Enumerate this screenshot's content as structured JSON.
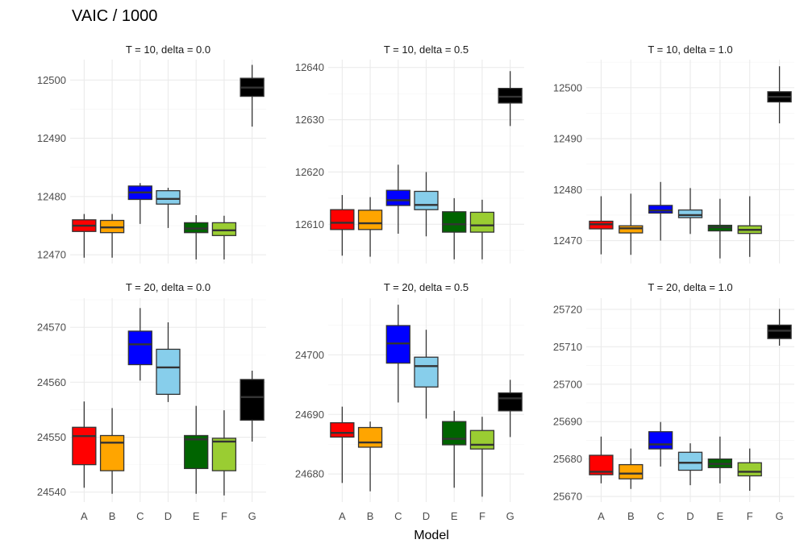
{
  "chart_data": {
    "type": "box",
    "title": "VAIC / 1000",
    "xlabel": "Model",
    "categories": [
      "A",
      "B",
      "C",
      "D",
      "E",
      "F",
      "G"
    ],
    "colors": {
      "A": "#ff0000",
      "B": "#ffa500",
      "C": "#0000ff",
      "D": "#87ceeb",
      "E": "#006400",
      "F": "#9acd32",
      "G": "#000000"
    },
    "box_outline": "#333333",
    "panels": [
      {
        "label": "T = 10, delta = 0.0",
        "ylim": [
          12468.5,
          12503.5
        ],
        "yticks": [
          12470,
          12480,
          12490,
          12500
        ],
        "boxes": [
          {
            "model": "A",
            "min": 12469.5,
            "q1": 12474.0,
            "median": 12475.0,
            "q3": 12476.0,
            "max": 12477.0
          },
          {
            "model": "B",
            "min": 12469.5,
            "q1": 12473.8,
            "median": 12474.7,
            "q3": 12475.9,
            "max": 12477.0
          },
          {
            "model": "C",
            "min": 12475.3,
            "q1": 12479.5,
            "median": 12480.7,
            "q3": 12481.8,
            "max": 12482.3
          },
          {
            "model": "D",
            "min": 12474.6,
            "q1": 12478.7,
            "median": 12479.6,
            "q3": 12481.0,
            "max": 12481.5
          },
          {
            "model": "E",
            "min": 12469.2,
            "q1": 12473.8,
            "median": 12474.5,
            "q3": 12475.5,
            "max": 12476.8
          },
          {
            "model": "F",
            "min": 12469.2,
            "q1": 12473.3,
            "median": 12474.2,
            "q3": 12475.5,
            "max": 12476.7
          },
          {
            "model": "G",
            "min": 12492.0,
            "q1": 12497.2,
            "median": 12498.7,
            "q3": 12500.3,
            "max": 12502.6
          }
        ]
      },
      {
        "label": "T = 10, delta = 0.5",
        "ylim": [
          12602.5,
          12641.5
        ],
        "yticks": [
          12610,
          12620,
          12630,
          12640
        ],
        "boxes": [
          {
            "model": "A",
            "min": 12604.0,
            "q1": 12609.0,
            "median": 12610.3,
            "q3": 12612.8,
            "max": 12615.6
          },
          {
            "model": "B",
            "min": 12603.8,
            "q1": 12609.0,
            "median": 12610.2,
            "q3": 12612.7,
            "max": 12615.2
          },
          {
            "model": "C",
            "min": 12608.2,
            "q1": 12613.6,
            "median": 12614.6,
            "q3": 12616.5,
            "max": 12621.4
          },
          {
            "model": "D",
            "min": 12607.7,
            "q1": 12612.8,
            "median": 12613.7,
            "q3": 12616.3,
            "max": 12620.0
          },
          {
            "model": "E",
            "min": 12603.3,
            "q1": 12608.5,
            "median": 12610.0,
            "q3": 12612.4,
            "max": 12615.0
          },
          {
            "model": "F",
            "min": 12603.3,
            "q1": 12608.5,
            "median": 12609.8,
            "q3": 12612.3,
            "max": 12614.7
          },
          {
            "model": "G",
            "min": 12628.8,
            "q1": 12633.2,
            "median": 12634.4,
            "q3": 12636.0,
            "max": 12639.3
          }
        ]
      },
      {
        "label": "T = 10, delta = 1.0",
        "ylim": [
          12465.5,
          12505.5
        ],
        "yticks": [
          12470,
          12480,
          12490,
          12500
        ],
        "boxes": [
          {
            "model": "A",
            "min": 12467.3,
            "q1": 12472.3,
            "median": 12473.2,
            "q3": 12473.8,
            "max": 12478.7
          },
          {
            "model": "B",
            "min": 12467.2,
            "q1": 12471.5,
            "median": 12472.4,
            "q3": 12472.9,
            "max": 12479.2
          },
          {
            "model": "C",
            "min": 12470.0,
            "q1": 12475.4,
            "median": 12475.9,
            "q3": 12476.9,
            "max": 12481.5
          },
          {
            "model": "D",
            "min": 12471.3,
            "q1": 12474.5,
            "median": 12475.0,
            "q3": 12476.0,
            "max": 12480.3
          },
          {
            "model": "E",
            "min": 12466.5,
            "q1": 12471.9,
            "median": 12472.6,
            "q3": 12473.0,
            "max": 12478.2
          },
          {
            "model": "F",
            "min": 12466.8,
            "q1": 12471.4,
            "median": 12472.1,
            "q3": 12472.9,
            "max": 12478.7
          },
          {
            "model": "G",
            "min": 12493.0,
            "q1": 12497.2,
            "median": 12498.2,
            "q3": 12499.2,
            "max": 12504.2
          }
        ]
      },
      {
        "label": "T = 20, delta = 0.0",
        "ylim": [
          24538.2,
          24575.3
        ],
        "yticks": [
          24540,
          24550,
          24560,
          24570
        ],
        "boxes": [
          {
            "model": "A",
            "min": 24540.8,
            "q1": 24545.0,
            "median": 24550.2,
            "q3": 24551.8,
            "max": 24556.5
          },
          {
            "model": "B",
            "min": 24539.7,
            "q1": 24543.9,
            "median": 24549.0,
            "q3": 24550.3,
            "max": 24555.3
          },
          {
            "model": "C",
            "min": 24560.3,
            "q1": 24563.2,
            "median": 24566.9,
            "q3": 24569.3,
            "max": 24573.5
          },
          {
            "model": "D",
            "min": 24556.4,
            "q1": 24557.8,
            "median": 24562.7,
            "q3": 24566.0,
            "max": 24570.9
          },
          {
            "model": "E",
            "min": 24539.7,
            "q1": 24544.3,
            "median": 24549.6,
            "q3": 24550.3,
            "max": 24555.7
          },
          {
            "model": "F",
            "min": 24539.4,
            "q1": 24543.9,
            "median": 24549.2,
            "q3": 24549.8,
            "max": 24554.9
          },
          {
            "model": "G",
            "min": 24549.2,
            "q1": 24553.1,
            "median": 24557.3,
            "q3": 24560.5,
            "max": 24562.1
          }
        ]
      },
      {
        "label": "T = 20, delta = 0.5",
        "ylim": [
          24675.3,
          24709.5
        ],
        "yticks": [
          24680,
          24690,
          24700
        ],
        "boxes": [
          {
            "model": "A",
            "min": 24678.5,
            "q1": 24686.2,
            "median": 24686.9,
            "q3": 24688.6,
            "max": 24691.3
          },
          {
            "model": "B",
            "min": 24677.1,
            "q1": 24684.5,
            "median": 24685.3,
            "q3": 24687.8,
            "max": 24688.8
          },
          {
            "model": "C",
            "min": 24692.0,
            "q1": 24698.6,
            "median": 24701.9,
            "q3": 24704.9,
            "max": 24708.4
          },
          {
            "model": "D",
            "min": 24689.3,
            "q1": 24694.6,
            "median": 24698.1,
            "q3": 24699.6,
            "max": 24704.2
          },
          {
            "model": "E",
            "min": 24677.7,
            "q1": 24684.9,
            "median": 24685.9,
            "q3": 24688.8,
            "max": 24690.6
          },
          {
            "model": "F",
            "min": 24676.2,
            "q1": 24684.2,
            "median": 24684.9,
            "q3": 24687.3,
            "max": 24689.6
          },
          {
            "model": "G",
            "min": 24686.2,
            "q1": 24690.6,
            "median": 24692.7,
            "q3": 24693.6,
            "max": 24695.8
          }
        ]
      },
      {
        "label": "T = 20, delta = 1.0",
        "ylim": [
          25668.5,
          25723.0
        ],
        "yticks": [
          25670,
          25680,
          25690,
          25700,
          25710,
          25720
        ],
        "boxes": [
          {
            "model": "A",
            "min": 25673.5,
            "q1": 25675.8,
            "median": 25676.6,
            "q3": 25681.0,
            "max": 25686.0
          },
          {
            "model": "B",
            "min": 25672.0,
            "q1": 25674.7,
            "median": 25676.1,
            "q3": 25678.5,
            "max": 25682.8
          },
          {
            "model": "C",
            "min": 25678.0,
            "q1": 25682.7,
            "median": 25683.9,
            "q3": 25687.3,
            "max": 25689.9
          },
          {
            "model": "D",
            "min": 25673.0,
            "q1": 25677.0,
            "median": 25679.0,
            "q3": 25681.8,
            "max": 25684.2
          },
          {
            "model": "E",
            "min": 25673.5,
            "q1": 25677.7,
            "median": 25678.7,
            "q3": 25680.0,
            "max": 25686.0
          },
          {
            "model": "F",
            "min": 25671.5,
            "q1": 25675.5,
            "median": 25676.6,
            "q3": 25679.0,
            "max": 25682.8
          },
          {
            "model": "G",
            "min": 25710.3,
            "q1": 25712.2,
            "median": 25714.3,
            "q3": 25715.8,
            "max": 25720.1
          }
        ]
      }
    ]
  }
}
